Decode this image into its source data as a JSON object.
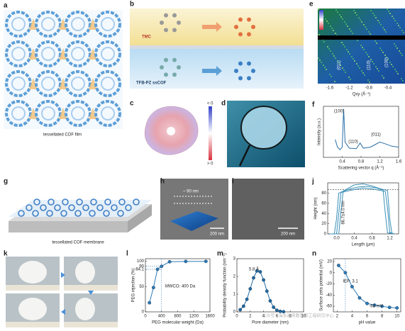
{
  "panel_labels": [
    "a",
    "b",
    "c",
    "d",
    "e",
    "f",
    "g",
    "h",
    "i",
    "j",
    "k",
    "l",
    "m",
    "n"
  ],
  "panels": {
    "a": {
      "caption": "tessellated COF film"
    },
    "b": {
      "labels": [
        "TMC",
        "TFB-PZ ssCOF"
      ]
    },
    "c": {
      "colorbar": [
        "< 0",
        "> 0"
      ]
    },
    "g": {
      "caption": "tessellated COF membrane"
    },
    "h": {
      "labels": [
        "~ 90 nm",
        "200 nm"
      ]
    },
    "i": {
      "scale": "200 nm"
    }
  },
  "watermark": "公众号 · 海水利用教育部工程研究中心",
  "chart_data": [
    {
      "type": "image",
      "xlabel": "Qxy (Å⁻¹)",
      "xlim": [
        -1.85,
        -0.05
      ],
      "xticks": [
        -1.6,
        -1.2,
        -0.8,
        -0.4
      ],
      "annotations": [
        "(011)",
        "(110)",
        "(100)"
      ]
    },
    {
      "type": "line",
      "xlabel": "Scattering vector q (Å⁻¹)",
      "ylabel": "Intensity (a.u.)",
      "xlim": [
        0,
        1.6
      ],
      "xticks": [
        0.4,
        0.8,
        1.2,
        1.6
      ],
      "ylim": [
        0,
        1
      ],
      "series": [
        {
          "color": "#2b6fa8",
          "x": [
            0.25,
            0.3,
            0.35,
            0.4,
            0.43,
            0.46,
            0.55,
            0.7,
            0.78,
            0.85,
            1.0,
            1.1,
            1.2,
            1.3,
            1.45,
            1.6
          ],
          "values": [
            0.35,
            0.2,
            0.15,
            0.2,
            0.95,
            0.3,
            0.18,
            0.17,
            0.28,
            0.18,
            0.2,
            0.25,
            0.3,
            0.27,
            0.22,
            0.2
          ]
        }
      ],
      "annotations": [
        "(100)",
        "(110)",
        "(011)"
      ]
    },
    {
      "type": "line",
      "xlabel": "Length (μm)",
      "ylabel": "Height (nm)",
      "xlim": [
        -0.2,
        1.4
      ],
      "xticks": [
        {
          "value": 0,
          "label": "0.0"
        },
        0.4,
        0.8,
        1.2
      ],
      "ylim": [
        0,
        100
      ],
      "yticks": [
        0,
        20,
        40,
        60,
        80
      ],
      "hline": 86.7,
      "series": [
        {
          "color": "#3a8fb7",
          "x": [
            -0.15,
            0,
            0.05,
            0.1,
            0.3,
            0.5,
            0.7,
            0.9,
            1.05,
            1.1,
            1.15,
            1.3
          ],
          "values": [
            0,
            0,
            40,
            82,
            88,
            92,
            93,
            90,
            86,
            40,
            2,
            0
          ]
        },
        {
          "color": "#3a8fb7",
          "x": [
            -0.15,
            -0.05,
            0,
            0.05,
            0.3,
            0.6,
            0.8,
            1.0,
            1.1,
            1.15,
            1.2,
            1.3
          ],
          "values": [
            0,
            0,
            30,
            80,
            85,
            90,
            88,
            85,
            83,
            50,
            3,
            0
          ]
        },
        {
          "color": "#3a8fb7",
          "x": [
            -0.15,
            0.05,
            0.1,
            0.15,
            0.4,
            0.6,
            0.8,
            1.0,
            1.15,
            1.2,
            1.25,
            1.3
          ],
          "values": [
            0,
            0,
            45,
            84,
            96,
            98,
            94,
            88,
            85,
            30,
            0,
            0
          ]
        }
      ],
      "annotations": [
        "86.7±4.0 nm"
      ]
    },
    {
      "type": "line",
      "xlabel": "PEG molecular weight (Da)",
      "ylabel": "PEG rejection (%)",
      "xlim": [
        0,
        1600
      ],
      "xticks": [
        0,
        400,
        800,
        1200,
        1600
      ],
      "ylim": [
        0,
        105
      ],
      "yticks": [
        0,
        50,
        84.1,
        90,
        100
      ],
      "vline": 400,
      "markers": true,
      "series": [
        {
          "color": "#2b7bb9",
          "x": [
            100,
            200,
            300,
            400,
            600,
            1000,
            1500
          ],
          "values": [
            18,
            48,
            84.1,
            90,
            99,
            99.6,
            99.8
          ]
        }
      ],
      "annotations": [
        "MWCO: 400 Da"
      ]
    },
    {
      "type": "line",
      "xlabel": "Pore diameter (nm)",
      "ylabel": "Probability density function (nm⁻¹)",
      "xlim": [
        0,
        10
      ],
      "xticks": [
        0,
        2,
        4,
        6,
        8,
        10
      ],
      "ylim": [
        0,
        3
      ],
      "yticks": [
        0,
        1,
        2,
        3
      ],
      "markers": true,
      "series": [
        {
          "color": "#1f6aa5",
          "x": [
            0.5,
            1,
            1.5,
            2,
            2.5,
            3,
            3.5,
            4,
            4.5,
            5,
            5.5,
            6,
            6.5,
            7
          ],
          "values": [
            0.12,
            0.32,
            0.71,
            1.3,
            1.92,
            2.31,
            2.26,
            1.8,
            1.17,
            0.62,
            0.26,
            0.09,
            0.03,
            0.01
          ]
        }
      ],
      "annotations": [
        "5.8 Å"
      ]
    },
    {
      "type": "line",
      "xlabel": "pH value",
      "ylabel": "Surface zeta potential (mV)",
      "xlim": [
        1.5,
        10.5
      ],
      "xticks": [
        2,
        4,
        6,
        8,
        10
      ],
      "ylim": [
        -70,
        25
      ],
      "yticks": [
        -60,
        -40,
        -20,
        0,
        20
      ],
      "vline": 3.1,
      "markers": true,
      "series": [
        {
          "color": "#2b7bb9",
          "x": [
            2.2,
            3.1,
            4,
            5,
            6,
            7,
            8,
            9,
            10
          ],
          "values": [
            13,
            0,
            -25,
            -45,
            -55,
            -58,
            -60,
            -62,
            -63
          ]
        }
      ],
      "annotations": [
        "IEP: 3.1",
        "-63 mV"
      ]
    }
  ]
}
